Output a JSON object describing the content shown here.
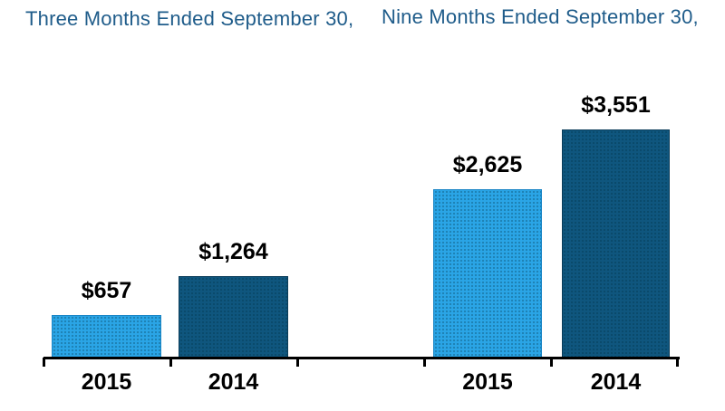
{
  "headers": {
    "left": "Three Months Ended September 30,",
    "right": "Nine Months Ended September 30,",
    "color": "#1F5C8A"
  },
  "chart_data": {
    "type": "bar",
    "title": "",
    "xlabel": "",
    "ylabel": "",
    "grid": false,
    "legend": "none",
    "ylim": [
      0,
      3551
    ],
    "axis_color": "#000000",
    "value_prefix": "$",
    "groups": [
      {
        "title": "Three Months Ended September 30,",
        "categories": [
          "2015",
          "2014"
        ],
        "values": [
          657,
          1264
        ],
        "labels": [
          "$657",
          "$1,264"
        ]
      },
      {
        "title": "Nine Months Ended September 30,",
        "categories": [
          "2015",
          "2014"
        ],
        "values": [
          2625,
          3551
        ],
        "labels": [
          "$2,625",
          "$3,551"
        ]
      }
    ],
    "series_colors": [
      {
        "category": "2015",
        "fill": "#2AA5E6",
        "border": "#1B86C6"
      },
      {
        "category": "2014",
        "fill": "#0F567E",
        "border": "#0A3C59"
      }
    ]
  }
}
